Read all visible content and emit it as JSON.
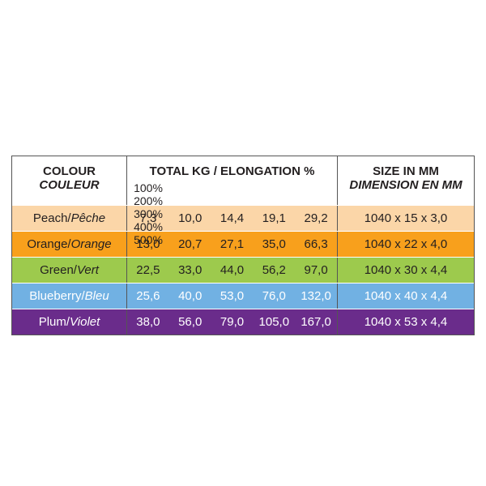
{
  "table": {
    "header": {
      "colour": "COLOUR",
      "colour_fr": "COULEUR",
      "total": "TOTAL KG / ELONGATION %",
      "elongations": [
        "100%",
        "200%",
        "300%",
        "400%",
        "500%"
      ],
      "size": "SIZE IN MM",
      "size_fr": "DIMENSION EN MM"
    },
    "rows": [
      {
        "name": "Peach/",
        "name_fr": "Pêche",
        "values": [
          "7,3",
          "10,0",
          "14,4",
          "19,1",
          "29,2"
        ],
        "size": "1040 x 15 x 3,0",
        "color": "#fbd6a8",
        "text_color": "#231f20"
      },
      {
        "name": "Orange/",
        "name_fr": "Orange",
        "values": [
          "13,0",
          "20,7",
          "27,1",
          "35,0",
          "66,3"
        ],
        "size": "1040 x 22 x 4,0",
        "color": "#f8a01c",
        "text_color": "#231f20"
      },
      {
        "name": "Green/",
        "name_fr": "Vert",
        "values": [
          "22,5",
          "33,0",
          "44,0",
          "56,2",
          "97,0"
        ],
        "size": "1040 x 30 x 4,4",
        "color": "#9dca4d",
        "text_color": "#231f20"
      },
      {
        "name": "Blueberry/",
        "name_fr": "Bleu",
        "values": [
          "25,6",
          "40,0",
          "53,0",
          "76,0",
          "132,0"
        ],
        "size": "1040 x 40 x 4,4",
        "color": "#71b1e3",
        "text_color": "#ffffff"
      },
      {
        "name": "Plum/",
        "name_fr": "Violet",
        "values": [
          "38,0",
          "56,0",
          "79,0",
          "105,0",
          "167,0"
        ],
        "size": "1040 x 53 x 4,4",
        "color": "#6a2c8b",
        "text_color": "#ffffff"
      }
    ]
  }
}
